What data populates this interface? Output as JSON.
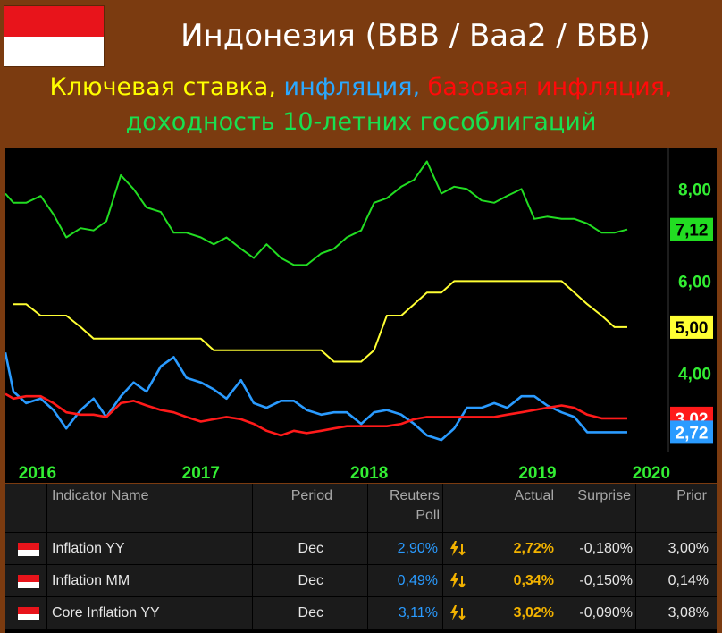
{
  "header": {
    "title": "Индонезия (BBB / Baa2 / BBB)",
    "subtitle": {
      "part1": "Ключевая ставка,",
      "part2": "инфляция,",
      "part3": "базовая инфляция,",
      "part4": "доходность 10-летних гособлигаций"
    }
  },
  "colors": {
    "bond_yield": "#22dd22",
    "key_rate": "#ffff33",
    "inflation": "#2a9bff",
    "core_inflation": "#ff1a1a"
  },
  "chart_data": {
    "type": "line",
    "title": "",
    "x_ticks": [
      "2016",
      "2017",
      "2018",
      "2019",
      "2020"
    ],
    "y_ticks": [
      "8,00",
      "6,00",
      "4,00"
    ],
    "ylim": [
      2.3,
      8.9
    ],
    "last_value_labels": {
      "bond_yield": "7,12",
      "key_rate": "5,00",
      "core_inflation": "3,02",
      "inflation": "2,72"
    },
    "series": [
      {
        "id": "bond_yield",
        "x": [
          2015.95,
          2016.0,
          2016.08,
          2016.17,
          2016.25,
          2016.33,
          2016.42,
          2016.5,
          2016.58,
          2016.67,
          2016.75,
          2016.83,
          2016.92,
          2017.0,
          2017.08,
          2017.17,
          2017.25,
          2017.33,
          2017.42,
          2017.5,
          2017.58,
          2017.67,
          2017.75,
          2017.83,
          2017.92,
          2018.0,
          2018.08,
          2018.17,
          2018.25,
          2018.33,
          2018.42,
          2018.5,
          2018.58,
          2018.67,
          2018.75,
          2018.83,
          2018.92,
          2019.0,
          2019.08,
          2019.17,
          2019.25,
          2019.33,
          2019.42,
          2019.5,
          2019.58,
          2019.67,
          2019.75,
          2019.83
        ],
        "values": [
          7.9,
          7.7,
          7.7,
          7.85,
          7.45,
          6.95,
          7.15,
          7.1,
          7.3,
          8.3,
          8.0,
          7.6,
          7.5,
          7.05,
          7.05,
          6.95,
          6.8,
          6.95,
          6.7,
          6.5,
          6.8,
          6.5,
          6.35,
          6.35,
          6.6,
          6.7,
          6.95,
          7.1,
          7.7,
          7.8,
          8.05,
          8.2,
          8.6,
          7.9,
          8.05,
          8.0,
          7.75,
          7.7,
          7.85,
          8.0,
          7.35,
          7.4,
          7.35,
          7.35,
          7.25,
          7.05,
          7.05,
          7.12
        ]
      },
      {
        "id": "key_rate",
        "x": [
          2016.0,
          2016.08,
          2016.17,
          2016.25,
          2016.33,
          2016.42,
          2016.5,
          2016.58,
          2016.67,
          2016.75,
          2016.83,
          2016.92,
          2017.0,
          2017.08,
          2017.17,
          2017.25,
          2017.33,
          2017.42,
          2017.5,
          2017.58,
          2017.67,
          2017.75,
          2017.83,
          2017.92,
          2018.0,
          2018.08,
          2018.17,
          2018.25,
          2018.33,
          2018.42,
          2018.5,
          2018.58,
          2018.67,
          2018.75,
          2018.83,
          2018.92,
          2019.0,
          2019.08,
          2019.17,
          2019.25,
          2019.33,
          2019.42,
          2019.5,
          2019.58,
          2019.67,
          2019.75,
          2019.83
        ],
        "values": [
          5.5,
          5.5,
          5.25,
          5.25,
          5.25,
          5.0,
          4.75,
          4.75,
          4.75,
          4.75,
          4.75,
          4.75,
          4.75,
          4.75,
          4.75,
          4.5,
          4.5,
          4.5,
          4.5,
          4.5,
          4.5,
          4.5,
          4.5,
          4.5,
          4.25,
          4.25,
          4.25,
          4.5,
          5.25,
          5.25,
          5.5,
          5.75,
          5.75,
          6.0,
          6.0,
          6.0,
          6.0,
          6.0,
          6.0,
          6.0,
          6.0,
          6.0,
          5.75,
          5.5,
          5.25,
          5.0,
          5.0
        ]
      },
      {
        "id": "inflation",
        "x": [
          2015.95,
          2016.0,
          2016.08,
          2016.17,
          2016.25,
          2016.33,
          2016.42,
          2016.5,
          2016.58,
          2016.67,
          2016.75,
          2016.83,
          2016.92,
          2017.0,
          2017.08,
          2017.17,
          2017.25,
          2017.33,
          2017.42,
          2017.5,
          2017.58,
          2017.67,
          2017.75,
          2017.83,
          2017.92,
          2018.0,
          2018.08,
          2018.17,
          2018.25,
          2018.33,
          2018.42,
          2018.5,
          2018.58,
          2018.67,
          2018.75,
          2018.83,
          2018.92,
          2019.0,
          2019.08,
          2019.17,
          2019.25,
          2019.33,
          2019.42,
          2019.5,
          2019.58,
          2019.67,
          2019.75,
          2019.83
        ],
        "values": [
          4.45,
          3.6,
          3.35,
          3.45,
          3.2,
          2.8,
          3.2,
          3.45,
          3.05,
          3.5,
          3.8,
          3.6,
          4.15,
          4.35,
          3.9,
          3.8,
          3.65,
          3.45,
          3.85,
          3.35,
          3.25,
          3.4,
          3.4,
          3.2,
          3.1,
          3.15,
          3.15,
          2.9,
          3.15,
          3.2,
          3.1,
          2.9,
          2.65,
          2.55,
          2.8,
          3.25,
          3.25,
          3.35,
          3.25,
          3.5,
          3.5,
          3.3,
          3.15,
          3.05,
          2.72,
          2.72,
          2.72,
          2.72
        ]
      },
      {
        "id": "core_inflation",
        "x": [
          2015.95,
          2016.0,
          2016.08,
          2016.17,
          2016.25,
          2016.33,
          2016.42,
          2016.5,
          2016.58,
          2016.67,
          2016.75,
          2016.83,
          2016.92,
          2017.0,
          2017.08,
          2017.17,
          2017.25,
          2017.33,
          2017.42,
          2017.5,
          2017.58,
          2017.67,
          2017.75,
          2017.83,
          2017.92,
          2018.0,
          2018.08,
          2018.17,
          2018.25,
          2018.33,
          2018.42,
          2018.5,
          2018.58,
          2018.67,
          2018.75,
          2018.83,
          2018.92,
          2019.0,
          2019.08,
          2019.17,
          2019.25,
          2019.33,
          2019.42,
          2019.5,
          2019.58,
          2019.67,
          2019.75,
          2019.83
        ],
        "values": [
          3.55,
          3.45,
          3.5,
          3.5,
          3.35,
          3.15,
          3.1,
          3.1,
          3.05,
          3.35,
          3.4,
          3.3,
          3.2,
          3.15,
          3.05,
          2.95,
          3.0,
          3.05,
          3.0,
          2.9,
          2.75,
          2.65,
          2.75,
          2.7,
          2.75,
          2.8,
          2.85,
          2.85,
          2.85,
          2.85,
          2.9,
          3.0,
          3.05,
          3.05,
          3.05,
          3.05,
          3.05,
          3.05,
          3.1,
          3.15,
          3.2,
          3.25,
          3.3,
          3.25,
          3.1,
          3.02,
          3.02,
          3.02
        ]
      }
    ]
  },
  "table": {
    "headers": {
      "indicator": "Indicator Name",
      "period": "Period",
      "poll_line1": "Reuters",
      "poll_line2": "Poll",
      "actual": "Actual",
      "surprise": "Surprise",
      "prior": "Prior"
    },
    "rows": [
      {
        "name": "Inflation YY",
        "period": "Dec",
        "poll": "2,90%",
        "actual": "2,72%",
        "surprise": "-0,180%",
        "prior": "3,00%"
      },
      {
        "name": "Inflation MM",
        "period": "Dec",
        "poll": "0,49%",
        "actual": "0,34%",
        "surprise": "-0,150%",
        "prior": "0,14%"
      },
      {
        "name": "Core Inflation YY",
        "period": "Dec",
        "poll": "3,11%",
        "actual": "3,02%",
        "surprise": "-0,090%",
        "prior": "3,08%"
      }
    ]
  }
}
